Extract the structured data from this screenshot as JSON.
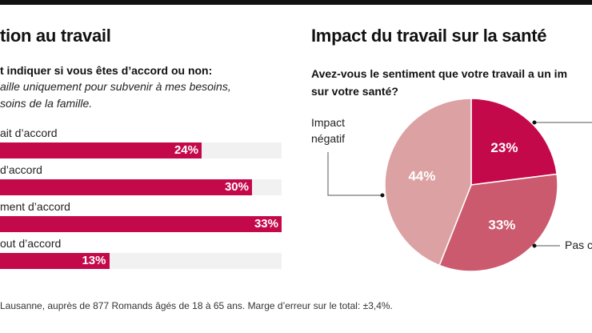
{
  "left": {
    "title": "tion au travail",
    "question": "t indiquer si vous êtes d’accord ou non:",
    "statement_line1": "aille uniquement pour subvenir à mes besoins,",
    "statement_line2": "soins de la famille."
  },
  "right": {
    "title": "Impact du travail sur la santé",
    "question_line1": "Avez-vous le sentiment que votre travail a un im",
    "question_line2": "sur votre santé?",
    "label_negative_line1": "Impact",
    "label_negative_line2": "négatif",
    "label_none": "Pas c"
  },
  "footnote": "Lausanne, auprès de 877 Romands âgés de 18 à 65 ans. Marge d’erreur sur le total: ±3,4%.",
  "colors": {
    "bar": "#c4094a",
    "track": "#f1f1f1",
    "slice1": "#c4094a",
    "slice2": "#cc5a6e",
    "slice3": "#dca1a2"
  },
  "chart_data": [
    {
      "type": "bar",
      "orientation": "horizontal",
      "categories": [
        "ait d’accord",
        "d’accord",
        "ment d’accord",
        "out d’accord"
      ],
      "values": [
        24,
        30,
        33,
        13
      ],
      "value_labels": [
        "24%",
        "30%",
        "33%",
        "13%"
      ],
      "unit": "%"
    },
    {
      "type": "pie",
      "values": [
        23,
        33,
        44
      ],
      "value_labels": [
        "23%",
        "33%",
        "44%"
      ],
      "start": "top",
      "direction": "clockwise"
    }
  ]
}
